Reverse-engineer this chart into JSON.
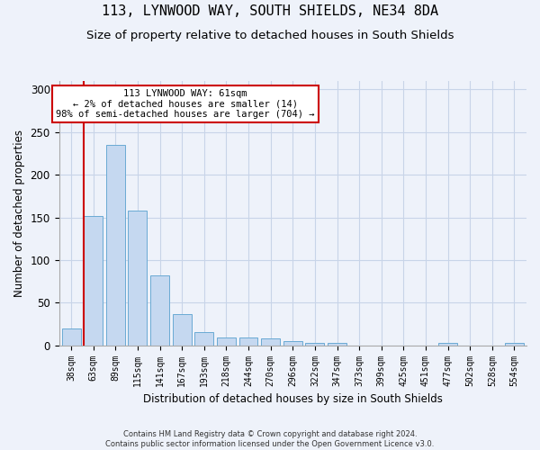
{
  "title1": "113, LYNWOOD WAY, SOUTH SHIELDS, NE34 8DA",
  "title2": "Size of property relative to detached houses in South Shields",
  "xlabel": "Distribution of detached houses by size in South Shields",
  "ylabel": "Number of detached properties",
  "footnote": "Contains HM Land Registry data © Crown copyright and database right 2024.\nContains public sector information licensed under the Open Government Licence v3.0.",
  "bar_labels": [
    "38sqm",
    "63sqm",
    "89sqm",
    "115sqm",
    "141sqm",
    "167sqm",
    "193sqm",
    "218sqm",
    "244sqm",
    "270sqm",
    "296sqm",
    "322sqm",
    "347sqm",
    "373sqm",
    "399sqm",
    "425sqm",
    "451sqm",
    "477sqm",
    "502sqm",
    "528sqm",
    "554sqm"
  ],
  "bar_values": [
    20,
    152,
    235,
    158,
    82,
    37,
    15,
    9,
    9,
    8,
    5,
    3,
    3,
    0,
    0,
    0,
    0,
    3,
    0,
    0,
    3
  ],
  "bar_color": "#c5d8f0",
  "bar_edge_color": "#6aaad4",
  "annotation_box_text": "113 LYNWOOD WAY: 61sqm\n← 2% of detached houses are smaller (14)\n98% of semi-detached houses are larger (704) →",
  "annotation_box_color": "#ffffff",
  "annotation_box_edge_color": "#cc0000",
  "annotation_line_color": "#cc0000",
  "ylim": [
    0,
    310
  ],
  "yticks": [
    0,
    50,
    100,
    150,
    200,
    250,
    300
  ],
  "grid_color": "#c8d4e8",
  "bg_color": "#eef2fa",
  "title1_fontsize": 11,
  "title2_fontsize": 9.5
}
